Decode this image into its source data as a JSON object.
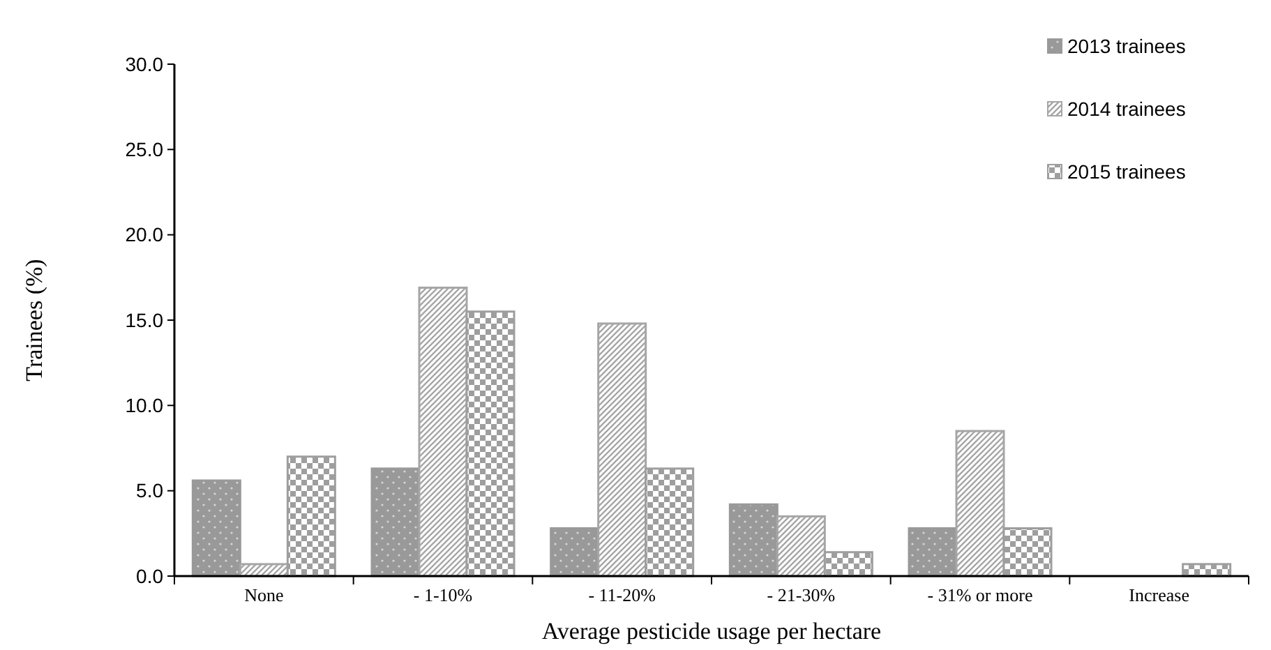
{
  "chart_data": {
    "type": "bar",
    "xlabel": "Average pesticide usage per hectare",
    "ylabel": "Trainees (%)",
    "categories": [
      "None",
      "- 1-10%",
      "- 11-20%",
      "- 21-30%",
      "- 31% or more",
      "Increase"
    ],
    "series": [
      {
        "name": "2013 trainees",
        "color": "#999999",
        "values": [
          5.6,
          6.3,
          2.8,
          4.2,
          2.8,
          0
        ]
      },
      {
        "name": "2014 trainees",
        "color": "#a6a6a6",
        "values": [
          0.7,
          16.9,
          14.8,
          3.5,
          8.5,
          0
        ]
      },
      {
        "name": "2015 trainees",
        "color": "#9e9e9e",
        "values": [
          7.0,
          15.5,
          6.3,
          1.4,
          2.8,
          0.7
        ]
      }
    ],
    "ylim": [
      0,
      30
    ],
    "yticks": [
      {
        "value": 0,
        "label": "0.0"
      },
      {
        "value": 5,
        "label": "5.0"
      },
      {
        "value": 10,
        "label": "10.0"
      },
      {
        "value": 15,
        "label": "15.0"
      },
      {
        "value": 20,
        "label": "20.0"
      },
      {
        "value": 25,
        "label": "25.0"
      },
      {
        "value": 30,
        "label": "30.0"
      }
    ],
    "grid": false,
    "legend": "top right"
  }
}
